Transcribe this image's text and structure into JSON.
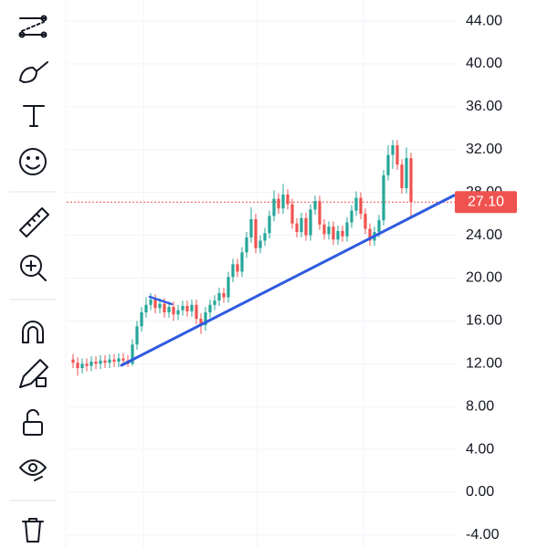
{
  "chart_data": {
    "type": "candlestick",
    "open": [
      12.4,
      12.1,
      11.6,
      12.0,
      11.8,
      12.2,
      12.0,
      12.3,
      12.1,
      12.4,
      12.2,
      12.5,
      12.3,
      12.0,
      13.8,
      15.5,
      16.8,
      17.5,
      18.0,
      17.2,
      17.6,
      16.8,
      17.3,
      16.6,
      17.0,
      17.4,
      16.9,
      17.5,
      16.2,
      15.6,
      16.8,
      17.5,
      17.9,
      18.6,
      18.2,
      20.1,
      21.3,
      20.6,
      22.4,
      23.8,
      25.5,
      22.8,
      23.5,
      24.2,
      25.8,
      27.4,
      26.5,
      27.8,
      26.9,
      25.1,
      24.3,
      25.6,
      24.0,
      26.4,
      27.2,
      25.0,
      24.1,
      24.8,
      23.6,
      24.4,
      23.9,
      25.2,
      26.3,
      27.5,
      26.0,
      24.6,
      23.5,
      24.3,
      25.4,
      29.6,
      31.5,
      32.4,
      30.6,
      28.4,
      31.2
    ],
    "high": [
      12.9,
      12.6,
      12.5,
      12.5,
      12.7,
      12.7,
      12.8,
      12.8,
      12.9,
      12.9,
      13.0,
      13.0,
      12.8,
      14.3,
      16.0,
      17.3,
      18.2,
      18.6,
      18.5,
      18.1,
      18.1,
      17.8,
      17.8,
      17.5,
      17.9,
      17.9,
      18.0,
      18.0,
      16.7,
      17.3,
      18.0,
      18.4,
      19.1,
      19.1,
      20.6,
      21.8,
      21.8,
      22.9,
      24.3,
      26.6,
      26.0,
      24.0,
      24.7,
      26.3,
      28.2,
      27.9,
      28.8,
      28.3,
      27.4,
      25.6,
      26.1,
      26.1,
      26.9,
      27.7,
      27.7,
      25.5,
      25.3,
      25.3,
      24.9,
      24.9,
      25.7,
      26.8,
      28.1,
      28.0,
      26.5,
      25.1,
      24.8,
      25.9,
      30.1,
      32.4,
      32.9,
      32.9,
      31.1,
      32.2,
      31.7
    ],
    "low": [
      11.6,
      10.9,
      11.1,
      11.3,
      11.3,
      11.5,
      11.5,
      11.6,
      11.6,
      11.7,
      11.7,
      11.8,
      11.7,
      11.8,
      13.3,
      15.0,
      16.3,
      17.0,
      16.7,
      16.7,
      16.3,
      16.3,
      16.0,
      16.1,
      16.5,
      16.4,
      16.4,
      15.7,
      14.8,
      15.1,
      16.3,
      17.0,
      17.4,
      17.7,
      17.7,
      19.6,
      20.1,
      20.1,
      21.9,
      23.3,
      22.3,
      22.3,
      23.0,
      23.7,
      25.3,
      26.0,
      26.0,
      26.4,
      24.6,
      23.8,
      23.8,
      23.5,
      23.5,
      25.9,
      24.5,
      23.6,
      23.6,
      23.1,
      23.1,
      23.4,
      23.4,
      24.7,
      25.8,
      25.5,
      24.1,
      23.0,
      23.0,
      23.8,
      24.9,
      29.1,
      30.2,
      30.1,
      27.9,
      27.9,
      25.6
    ],
    "close": [
      12.1,
      11.6,
      12.0,
      11.8,
      12.2,
      12.0,
      12.3,
      12.1,
      12.4,
      12.2,
      12.5,
      12.3,
      12.0,
      13.8,
      15.5,
      16.8,
      17.5,
      18.0,
      17.2,
      17.6,
      16.8,
      17.3,
      16.6,
      17.0,
      17.4,
      16.9,
      17.5,
      16.2,
      15.6,
      16.8,
      17.5,
      17.9,
      18.6,
      18.2,
      20.1,
      21.3,
      20.6,
      22.4,
      23.8,
      25.5,
      22.8,
      23.5,
      24.2,
      25.8,
      27.4,
      26.5,
      27.8,
      26.9,
      25.1,
      24.3,
      25.6,
      24.0,
      26.4,
      27.2,
      25.0,
      24.1,
      24.8,
      23.6,
      24.4,
      23.9,
      25.2,
      26.3,
      27.5,
      26.0,
      24.6,
      23.5,
      24.3,
      25.4,
      29.6,
      31.5,
      32.4,
      30.6,
      28.4,
      31.2,
      27.1
    ],
    "up_color": "#26a69a",
    "down_color": "#ef5350",
    "ylim": [
      -5.2,
      44.6
    ],
    "yticks": [
      {
        "value": 44,
        "label": "44.00"
      },
      {
        "value": 40,
        "label": "40.00"
      },
      {
        "value": 36,
        "label": "36.00"
      },
      {
        "value": 32,
        "label": "32.00"
      },
      {
        "value": 28,
        "label": "28.00"
      },
      {
        "value": 24,
        "label": "24.00"
      },
      {
        "value": 20,
        "label": "20.00"
      },
      {
        "value": 16,
        "label": "16.00"
      },
      {
        "value": 12,
        "label": "12.00"
      },
      {
        "value": 8,
        "label": "8.00"
      },
      {
        "value": 4,
        "label": "4.00"
      },
      {
        "value": 0,
        "label": "0.00"
      },
      {
        "value": -4,
        "label": "-4.00"
      }
    ],
    "last_price": {
      "value": 27.1,
      "label": "27.10"
    },
    "grid": true
  }
}
